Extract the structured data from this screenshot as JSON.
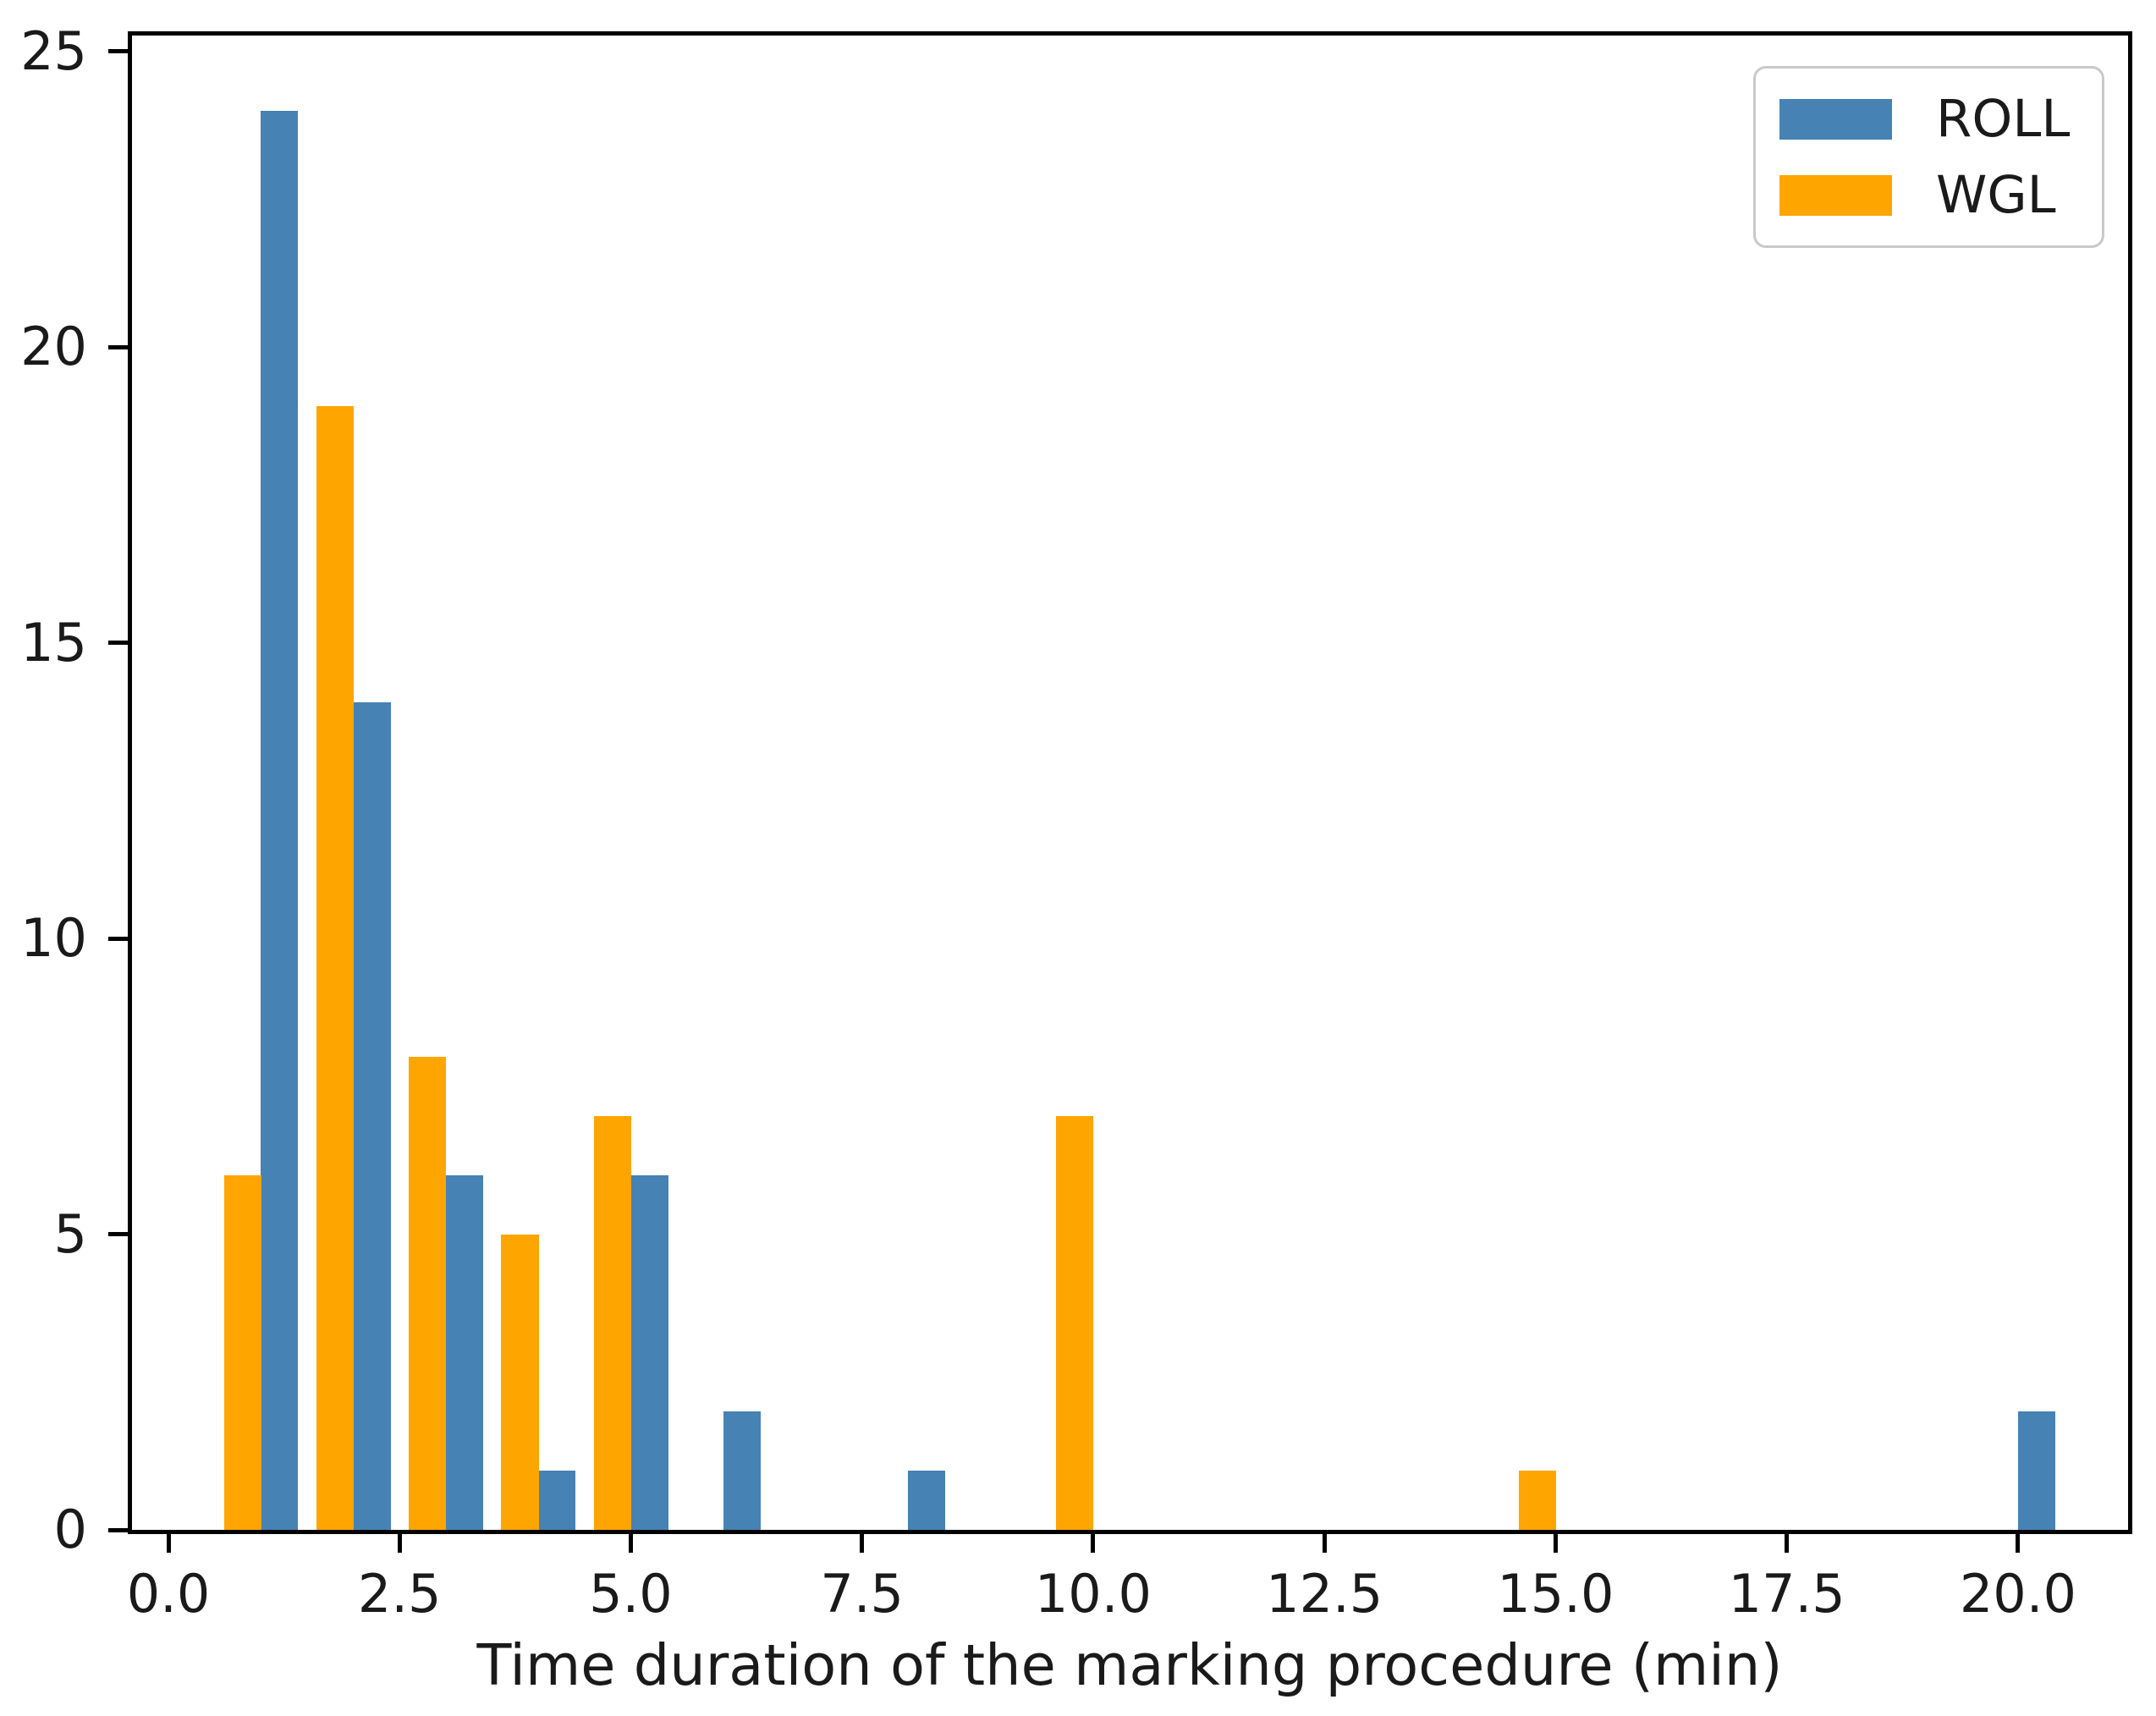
{
  "chart_data": {
    "type": "bar",
    "subtype": "grouped-histogram",
    "title": "",
    "xlabel": "Time duration of the marking procedure (min)",
    "ylabel": "",
    "xlim": [
      -0.393,
      21.19
    ],
    "ylim": [
      0,
      25.27
    ],
    "grid": false,
    "bar_half_width": 0.4,
    "x_ticks": [
      {
        "value": 0,
        "label": "0.0"
      },
      {
        "value": 2.5,
        "label": "2.5"
      },
      {
        "value": 5,
        "label": "5.0"
      },
      {
        "value": 7.5,
        "label": "7.5"
      },
      {
        "value": 10,
        "label": "10.0"
      },
      {
        "value": 12.5,
        "label": "12.5"
      },
      {
        "value": 15,
        "label": "15.0"
      },
      {
        "value": 17.5,
        "label": "17.5"
      },
      {
        "value": 20,
        "label": "20.0"
      }
    ],
    "y_ticks": [
      {
        "value": 0,
        "label": "0"
      },
      {
        "value": 5,
        "label": "5"
      },
      {
        "value": 10,
        "label": "10"
      },
      {
        "value": 15,
        "label": "15"
      },
      {
        "value": 20,
        "label": "20"
      },
      {
        "value": 25,
        "label": "25"
      }
    ],
    "series": [
      {
        "name": "ROLL",
        "color": "#4682B4",
        "side": "right",
        "points": [
          {
            "x": 1,
            "count": 24
          },
          {
            "x": 2,
            "count": 14
          },
          {
            "x": 3,
            "count": 6
          },
          {
            "x": 4,
            "count": 1
          },
          {
            "x": 5,
            "count": 6
          },
          {
            "x": 6,
            "count": 2
          },
          {
            "x": 8,
            "count": 1
          },
          {
            "x": 20,
            "count": 2
          }
        ]
      },
      {
        "name": "WGL",
        "color": "#FFA500",
        "side": "left",
        "points": [
          {
            "x": 1,
            "count": 6
          },
          {
            "x": 2,
            "count": 19
          },
          {
            "x": 3,
            "count": 8
          },
          {
            "x": 4,
            "count": 5
          },
          {
            "x": 5,
            "count": 7
          },
          {
            "x": 10,
            "count": 7
          },
          {
            "x": 15,
            "count": 1
          }
        ]
      }
    ],
    "legend": {
      "position": "upper right",
      "items": [
        "ROLL",
        "WGL"
      ]
    },
    "colors": {
      "axis": "#000000",
      "tick_label": "#1a1a1a",
      "background": "#ffffff",
      "legend_border": "#c9c9c9"
    }
  }
}
